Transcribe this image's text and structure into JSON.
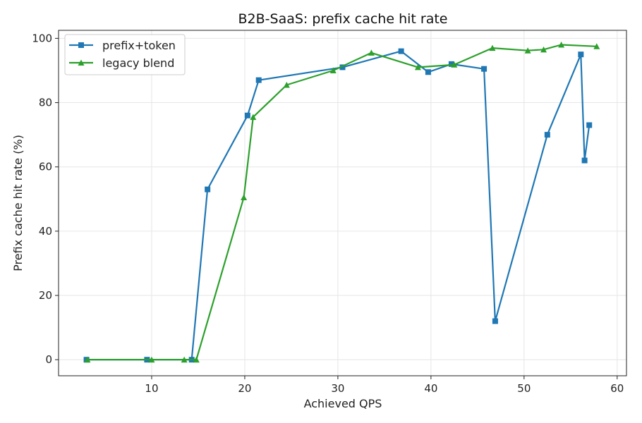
{
  "chart_data": {
    "type": "line",
    "title": "B2B-SaaS: prefix cache hit rate",
    "xlabel": "Achieved QPS",
    "ylabel": "Prefix cache hit rate (%)",
    "xlim": [
      0,
      61
    ],
    "ylim": [
      -5,
      102.5
    ],
    "xticks": [
      10,
      20,
      30,
      40,
      50,
      60
    ],
    "yticks": [
      0,
      20,
      40,
      60,
      80,
      100
    ],
    "grid": true,
    "legend_position": "top-left",
    "series": [
      {
        "name": "prefix+token",
        "color": "#1f77b4",
        "marker": "square",
        "x": [
          3.0,
          9.5,
          14.3,
          16.0,
          20.3,
          21.5,
          30.5,
          36.8,
          39.7,
          42.2,
          45.7,
          46.9,
          52.5,
          56.1,
          56.5,
          57.0
        ],
        "y": [
          0.0,
          0.0,
          0.0,
          53.0,
          76.0,
          87.0,
          91.0,
          96.0,
          89.5,
          92.0,
          90.5,
          12.0,
          70.0,
          95.0,
          62.0,
          73.0
        ]
      },
      {
        "name": "legacy blend",
        "color": "#2ca02c",
        "marker": "triangle",
        "x": [
          3.1,
          10.0,
          13.5,
          14.8,
          19.9,
          20.9,
          24.5,
          29.5,
          33.6,
          38.6,
          42.5,
          46.6,
          50.4,
          52.1,
          54.0,
          57.8
        ],
        "y": [
          0.0,
          0.0,
          0.0,
          0.0,
          50.5,
          75.5,
          85.5,
          90.0,
          95.5,
          91.0,
          91.8,
          97.0,
          96.2,
          96.5,
          98.0,
          97.5
        ]
      }
    ]
  }
}
